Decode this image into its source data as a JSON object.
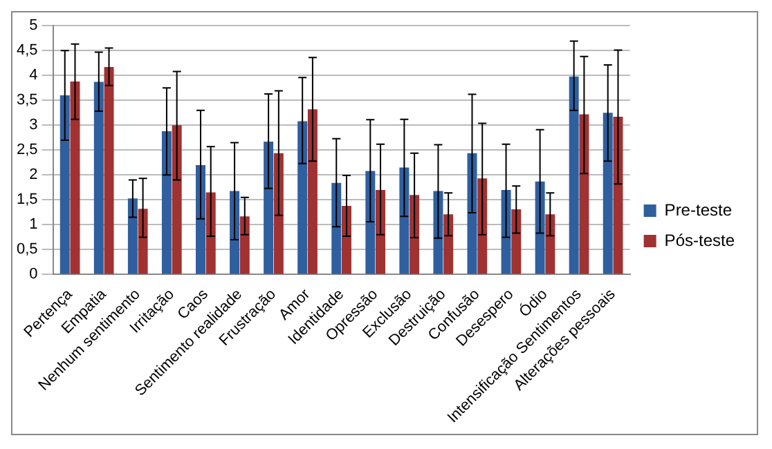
{
  "chart_data": {
    "type": "bar",
    "categories": [
      "Pertença",
      "Empatia",
      "Nenhum sentimento",
      "Irritação",
      "Caos",
      "Sentimento realidade",
      "Frustração",
      "Amor",
      "Identidade",
      "Opressão",
      "Exclusão",
      "Destruição",
      "Confusão",
      "Desespero",
      "Ódio",
      "Intensificação Sentimentos",
      "Alterações pessoais"
    ],
    "series": [
      {
        "name": "Pre-teste",
        "color": "#2f5f9f",
        "values": [
          3.6,
          3.87,
          1.53,
          2.88,
          2.2,
          1.68,
          2.67,
          3.08,
          1.84,
          2.08,
          2.15,
          1.68,
          2.44,
          1.7,
          1.87,
          3.98,
          3.25
        ],
        "errors": [
          [
            2.7,
            4.5
          ],
          [
            3.28,
            4.47
          ],
          [
            1.15,
            1.9
          ],
          [
            2.0,
            3.75
          ],
          [
            1.12,
            3.3
          ],
          [
            0.7,
            2.65
          ],
          [
            1.73,
            3.63
          ],
          [
            2.23,
            3.96
          ],
          [
            0.96,
            2.73
          ],
          [
            1.06,
            3.11
          ],
          [
            1.17,
            3.12
          ],
          [
            0.73,
            2.61
          ],
          [
            1.24,
            3.62
          ],
          [
            0.75,
            2.62
          ],
          [
            0.83,
            2.91
          ],
          [
            3.3,
            4.69
          ],
          [
            2.28,
            4.21
          ]
        ]
      },
      {
        "name": "Pós-teste",
        "color": "#a03232",
        "values": [
          3.88,
          4.17,
          1.32,
          3.0,
          1.65,
          1.17,
          2.44,
          3.32,
          1.38,
          1.7,
          1.6,
          1.21,
          1.93,
          1.31,
          1.21,
          3.22,
          3.17
        ],
        "errors": [
          [
            3.12,
            4.63
          ],
          [
            3.8,
            4.55
          ],
          [
            0.75,
            1.93
          ],
          [
            1.9,
            4.08
          ],
          [
            0.77,
            2.57
          ],
          [
            0.8,
            1.55
          ],
          [
            1.19,
            3.69
          ],
          [
            2.28,
            4.36
          ],
          [
            0.77,
            1.99
          ],
          [
            0.8,
            2.62
          ],
          [
            0.74,
            2.44
          ],
          [
            0.78,
            1.64
          ],
          [
            0.8,
            3.04
          ],
          [
            0.83,
            1.78
          ],
          [
            0.78,
            1.64
          ],
          [
            2.03,
            4.38
          ],
          [
            1.82,
            4.51
          ]
        ]
      }
    ],
    "ylim": [
      0,
      5
    ],
    "yticks": [
      {
        "value": 0,
        "label": "0"
      },
      {
        "value": 0.5,
        "label": "0,5"
      },
      {
        "value": 1,
        "label": "1"
      },
      {
        "value": 1.5,
        "label": "1,5"
      },
      {
        "value": 2,
        "label": "2"
      },
      {
        "value": 2.5,
        "label": "2,5"
      },
      {
        "value": 3,
        "label": "3"
      },
      {
        "value": 3.5,
        "label": "3,5"
      },
      {
        "value": 4,
        "label": "4"
      },
      {
        "value": 4.5,
        "label": "4,5"
      },
      {
        "value": 5,
        "label": "5"
      }
    ],
    "grid": "y",
    "legend": "right"
  }
}
